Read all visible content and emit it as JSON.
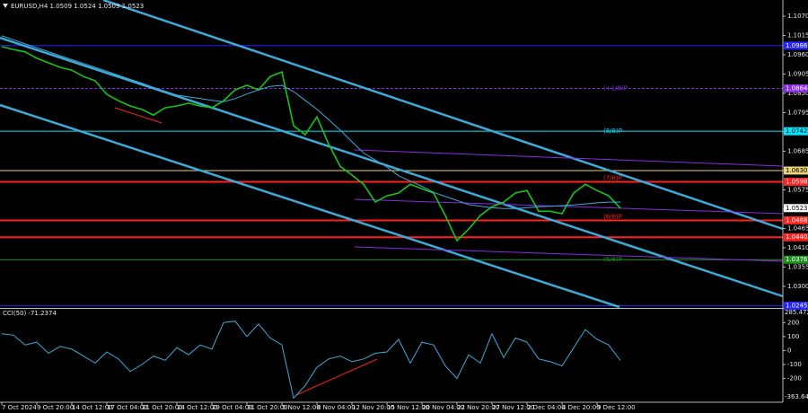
{
  "chart_data": [
    {
      "type": "line",
      "title": "EURUSD,H4  1.0509 1.0524 1.0509 1.0523",
      "categories": [
        "7 Oct 2024",
        null,
        null,
        "9 Oct 20:00",
        null,
        null,
        "14 Oct 12:00",
        null,
        null,
        "17 Oct 04:00",
        null,
        null,
        "21 Oct 20:00",
        null,
        null,
        "24 Oct 12:00",
        null,
        null,
        "29 Oct 04:00",
        null,
        null,
        "31 Oct 20:00",
        null,
        null,
        "5 Nov 12:00",
        null,
        null,
        "8 Nov 04:00",
        null,
        null,
        "12 Nov 20:00",
        null,
        null,
        "15 Nov 12:00",
        null,
        null,
        "20 Nov 04:00",
        null,
        null,
        "22 Nov 20:00",
        null,
        null,
        "27 Nov 12:00",
        null,
        null,
        "2 Dec 04:00",
        null,
        null,
        "4 Dec 20:00",
        null,
        null,
        "9 Dec 12:00",
        null,
        null
      ],
      "series": [
        {
          "color": "#19c419",
          "values": [
            1.0983,
            1.0975,
            1.0968,
            1.095,
            1.0937,
            1.0924,
            1.0916,
            1.0898,
            1.0886,
            1.0847,
            1.0829,
            1.0814,
            1.0804,
            1.0788,
            1.0809,
            1.0814,
            1.0822,
            1.0814,
            1.0809,
            1.0829,
            1.086,
            1.0873,
            1.086,
            1.0898,
            1.0911,
            1.0758,
            1.0732,
            1.0783,
            1.0706,
            1.0642,
            1.0617,
            1.0591,
            1.054,
            1.0558,
            1.0566,
            1.0591,
            1.0578,
            1.0566,
            1.0502,
            1.043,
            1.0463,
            1.0502,
            1.0527,
            1.054,
            1.0566,
            1.0573,
            1.0514,
            1.0514,
            1.0507,
            1.0566,
            1.0591,
            1.0573,
            1.0558,
            1.0523
          ]
        },
        {
          "color": "#3fa9d8",
          "values": [
            1.1014,
            1.1003,
            1.0991,
            1.098,
            1.0969,
            1.0957,
            1.0946,
            1.0935,
            1.0924,
            1.0913,
            1.0901,
            1.089,
            1.0879,
            1.0867,
            1.0856,
            1.0845,
            1.084,
            1.0835,
            1.083,
            1.0826,
            1.0835,
            1.0848,
            1.086,
            1.087,
            1.0873,
            1.0855,
            1.083,
            1.0805,
            1.0775,
            1.0745,
            1.0712,
            1.068,
            1.066,
            1.064,
            1.0615,
            1.06,
            1.0585,
            1.0568,
            1.0556,
            1.0545,
            1.0533,
            1.0528,
            1.0524,
            1.0522,
            1.0522,
            1.0524,
            1.0527,
            1.0528,
            1.053,
            1.0532,
            1.0535,
            1.0538,
            1.054,
            1.054
          ]
        }
      ],
      "ylim": [
        1.0241,
        1.1116
      ],
      "yticks": [
        {
          "value": 1.107,
          "label": "1.1070"
        },
        1.1015,
        {
          "value": 1.096,
          "label": "1.0960"
        },
        1.0905,
        {
          "value": 1.085,
          "label": "1.0850"
        },
        1.0795,
        {
          "value": 1.074,
          "label": "1.0740"
        },
        1.0685,
        {
          "value": 1.063,
          "label": "1.0630"
        },
        1.0575,
        {
          "value": 1.052,
          "label": "1.0520"
        },
        1.0465,
        {
          "value": 1.041,
          "label": "1.0410"
        },
        1.0355,
        {
          "value": 1.03,
          "label": "1.0300"
        }
      ],
      "grid": false,
      "levels": [
        {
          "value": 1.0986,
          "color": "#2424ff"
        },
        {
          "value": 1.0864,
          "color": "#8a2be2",
          "text": "(+1/8)P"
        },
        {
          "value": 1.0742,
          "color": "#00e5ff",
          "text": "(8/8)P"
        },
        {
          "value": 1.063,
          "label": "1.0630",
          "color": "#e8d27a"
        },
        {
          "value": 1.0598,
          "color": "#ff2020",
          "text": "(7/8)P"
        },
        {
          "value": 1.0488,
          "color": "#ff2020",
          "text": "(6/8)P"
        },
        {
          "value": 1.044,
          "label": "1.0440",
          "color": "#ff2020"
        },
        {
          "value": 1.0376,
          "color": "#1f8f1f",
          "text": "(5/8)P"
        },
        {
          "value": 1.0245,
          "color": "#2424ff"
        }
      ],
      "last_price": 1.0523
    },
    {
      "type": "line",
      "title": "CCI(50) -71.2374",
      "series": [
        {
          "color": "#3fa9d8",
          "values": [
            120,
            110,
            40,
            60,
            -20,
            30,
            10,
            -40,
            -90,
            -10,
            -60,
            -150,
            -100,
            -40,
            -70,
            20,
            -30,
            40,
            10,
            200,
            210,
            100,
            190,
            90,
            40,
            -340,
            -250,
            -120,
            -60,
            -40,
            -80,
            -60,
            -20,
            -10,
            80,
            -90,
            60,
            40,
            -110,
            -200,
            -30,
            -90,
            120,
            -50,
            90,
            60,
            -60,
            -80,
            -110,
            20,
            150,
            80,
            40,
            -71.2374
          ]
        }
      ],
      "ylim": [
        -363.641,
        285.4725
      ],
      "yticks": [
        200,
        100,
        0,
        -100,
        -200
      ]
    }
  ]
}
